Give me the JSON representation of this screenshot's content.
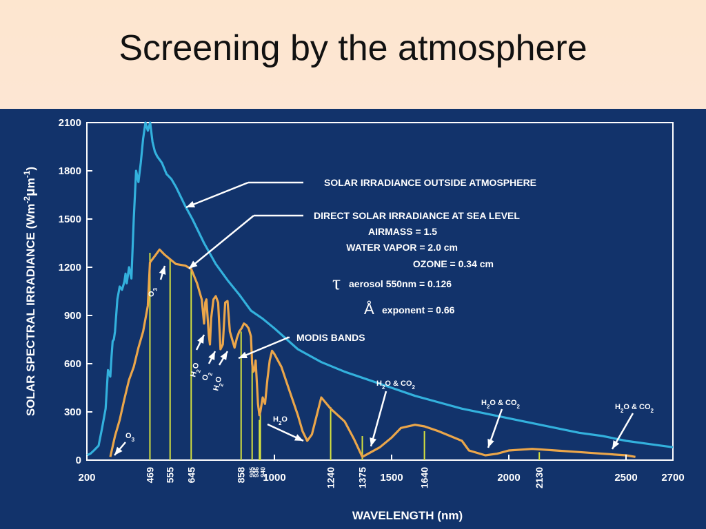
{
  "slide": {
    "title": "Screening by the atmosphere"
  },
  "chart_data": {
    "type": "line",
    "xlabel": "WAVELENGTH (nm)",
    "ylabel_parts": {
      "main": "SOLAR SPECTRAL IRRADIANCE (Wm",
      "exp1": "-2",
      "mu": "µ",
      "m": "m",
      "exp2": "-1",
      "close": ")"
    },
    "xlim": [
      200,
      2700
    ],
    "ylim": [
      0,
      2100
    ],
    "x_ticks": [
      200,
      1000,
      1500,
      2000,
      2500,
      2700
    ],
    "y_ticks": [
      0,
      300,
      600,
      900,
      1200,
      1500,
      1800,
      2100
    ],
    "grid": false,
    "colors": {
      "background": "#12336b",
      "outside": "#33b1dd",
      "sea_level": "#eba64a",
      "modis": "#d6e23e",
      "frame": "#ffffff"
    },
    "series": [
      {
        "name": "SOLAR IRRADIANCE OUTSIDE ATMOSPHERE",
        "x": [
          200,
          215,
          230,
          250,
          265,
          280,
          290,
          300,
          305,
          310,
          315,
          320,
          330,
          340,
          350,
          360,
          365,
          370,
          380,
          390,
          400,
          410,
          420,
          430,
          440,
          450,
          460,
          470,
          480,
          490,
          500,
          520,
          540,
          560,
          580,
          600,
          620,
          650,
          700,
          750,
          800,
          850,
          900,
          950,
          1000,
          1100,
          1200,
          1300,
          1400,
          1500,
          1600,
          1700,
          1800,
          1900,
          2000,
          2100,
          2200,
          2300,
          2400,
          2500,
          2600,
          2700
        ],
        "y": [
          30,
          40,
          60,
          90,
          200,
          320,
          560,
          520,
          640,
          740,
          750,
          800,
          1000,
          1080,
          1060,
          1110,
          1160,
          1100,
          1200,
          1130,
          1500,
          1800,
          1730,
          1850,
          2000,
          2100,
          2050,
          2100,
          1980,
          1920,
          1890,
          1850,
          1780,
          1750,
          1700,
          1640,
          1580,
          1500,
          1350,
          1220,
          1120,
          1030,
          930,
          880,
          820,
          690,
          610,
          550,
          500,
          450,
          400,
          360,
          320,
          290,
          260,
          230,
          200,
          170,
          150,
          120,
          100,
          80
        ]
      },
      {
        "name": "DIRECT SOLAR IRRADIANCE AT SEA LEVEL",
        "x": [
          300,
          320,
          340,
          360,
          380,
          400,
          420,
          440,
          460,
          469,
          490,
          510,
          530,
          555,
          580,
          620,
          645,
          670,
          690,
          700,
          705,
          710,
          720,
          725,
          730,
          740,
          750,
          760,
          770,
          780,
          790,
          800,
          810,
          820,
          830,
          840,
          850,
          860,
          870,
          880,
          890,
          900,
          905,
          910,
          915,
          920,
          930,
          936,
          940,
          950,
          960,
          970,
          980,
          990,
          1000,
          1030,
          1060,
          1100,
          1120,
          1140,
          1160,
          1200,
          1240,
          1300,
          1340,
          1375,
          1400,
          1450,
          1500,
          1540,
          1600,
          1640,
          1700,
          1800,
          1830,
          1900,
          1950,
          2000,
          2100,
          2200,
          2300,
          2400,
          2500,
          2540
        ],
        "y": [
          20,
          150,
          250,
          380,
          500,
          580,
          700,
          800,
          960,
          1230,
          1270,
          1310,
          1280,
          1250,
          1220,
          1210,
          1190,
          1100,
          1000,
          850,
          980,
          1000,
          780,
          720,
          880,
          1000,
          1020,
          980,
          690,
          720,
          980,
          990,
          800,
          750,
          700,
          760,
          800,
          820,
          850,
          840,
          820,
          770,
          600,
          550,
          560,
          620,
          350,
          280,
          300,
          390,
          350,
          500,
          620,
          680,
          660,
          580,
          450,
          280,
          180,
          120,
          160,
          390,
          320,
          240,
          130,
          20,
          40,
          80,
          140,
          200,
          220,
          210,
          180,
          120,
          60,
          30,
          40,
          60,
          70,
          60,
          50,
          40,
          30,
          20
        ]
      }
    ],
    "modis_bands": [
      {
        "label": "469",
        "x": 469,
        "top": 1290
      },
      {
        "label": "555",
        "x": 555,
        "top": 1250
      },
      {
        "label": "645",
        "x": 645,
        "top": 1190
      },
      {
        "label": "858",
        "x": 858,
        "top": 800
      },
      {
        "label": "905",
        "x": 905,
        "top": 600
      },
      {
        "label": "936",
        "x": 936,
        "top": 250
      },
      {
        "label": "940",
        "x": 940,
        "top": 290
      },
      {
        "label": "1240",
        "x": 1240,
        "top": 330
      },
      {
        "label": "1375",
        "x": 1375,
        "top": 150
      },
      {
        "label": "1640",
        "x": 1640,
        "top": 180
      },
      {
        "label": "2130",
        "x": 2130,
        "top": 50
      }
    ],
    "annotations": {
      "outside_label": "SOLAR IRRADIANCE OUTSIDE ATMOSPHERE",
      "sea_level_label": "DIRECT SOLAR IRRADIANCE AT SEA LEVEL",
      "airmass": "AIRMASS = 1.5",
      "water_vapor": "WATER VAPOR = 2.0 cm",
      "ozone": "OZONE = 0.34 cm",
      "tau_symbol": "τ",
      "aerosol": "aerosol 550nm = 0.126",
      "angstrom_symbol": "Å",
      "angstrom": "exponent = 0.66",
      "modis_label": "MODIS BANDS",
      "o3": "O3",
      "h2o": "H2O",
      "o2": "O2",
      "h2o_co2": "H2O & CO2"
    }
  }
}
